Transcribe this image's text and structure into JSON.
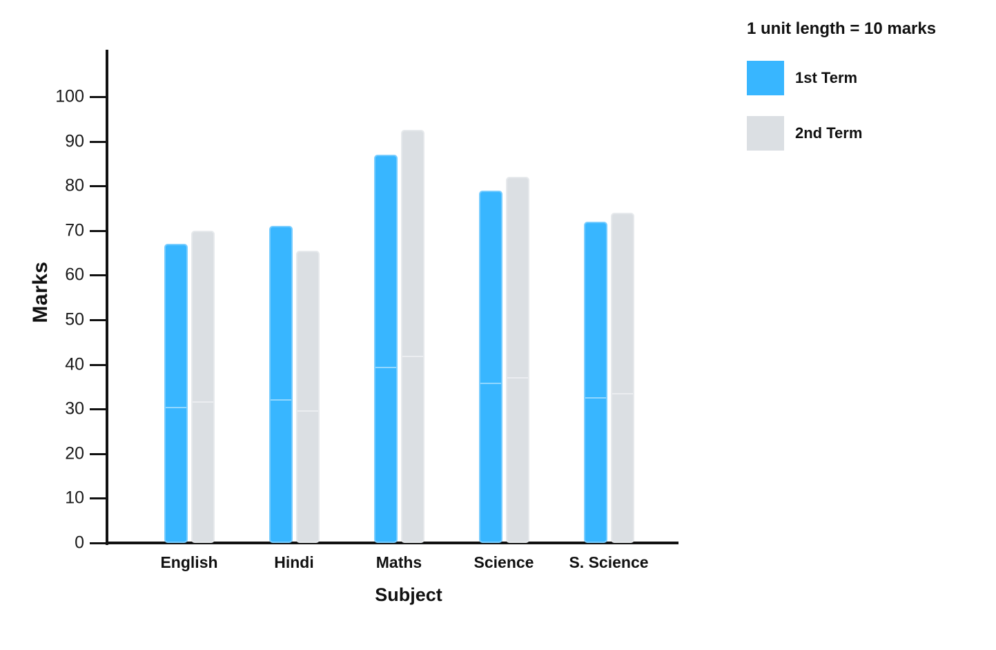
{
  "legend": {
    "title": "1 unit length = 10 marks",
    "items": [
      {
        "label": "1st Term",
        "color": "#38B6FF"
      },
      {
        "label": "2nd Term",
        "color": "#DBDFE3"
      }
    ]
  },
  "chart_data": {
    "type": "bar",
    "title": "",
    "xlabel": "Subject",
    "ylabel": "Marks",
    "categories": [
      "English",
      "Hindi",
      "Maths",
      "Science",
      "S. Science"
    ],
    "series": [
      {
        "name": "1st Term",
        "color": "#38B6FF",
        "values": [
          67,
          71,
          87,
          79,
          72
        ]
      },
      {
        "name": "2nd Term",
        "color": "#DBDFE3",
        "values": [
          70,
          65.5,
          92.5,
          82,
          74
        ]
      }
    ],
    "ylim": [
      0,
      100
    ],
    "y_ticks": [
      0,
      10,
      20,
      30,
      40,
      50,
      60,
      70,
      80,
      90,
      100
    ],
    "grid": false,
    "legend_position": "top-right",
    "axis_note": "1 unit length = 10 marks"
  }
}
